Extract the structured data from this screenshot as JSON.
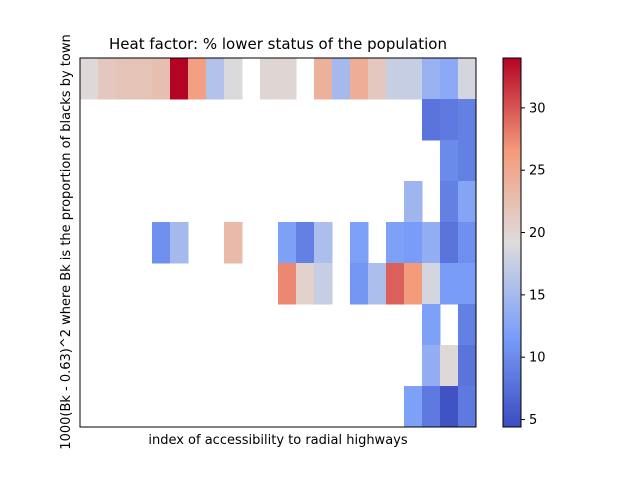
{
  "chart_data": {
    "type": "heatmap",
    "title": "Heat factor: % lower status of the population",
    "xlabel": "index of accessibility to radial highways",
    "ylabel": "1000(Bk - 0.63)^2 where Bk is the proportion of blacks by town",
    "colormap": "coolwarm",
    "colorbar": {
      "range": [
        4.4,
        34
      ],
      "ticks": [
        "5",
        "10",
        "15",
        "20",
        "25",
        "30"
      ],
      "tick_values": [
        5,
        10,
        15,
        20,
        25,
        30
      ]
    },
    "grid": false,
    "n_rows": 9,
    "n_cols": 22,
    "values": [
      [
        19.5,
        21.5,
        22,
        22,
        22.5,
        34,
        26,
        16,
        19,
        null,
        20,
        20,
        null,
        24,
        15,
        24.5,
        21.5,
        17.5,
        17.5,
        14,
        13,
        18.5
      ],
      [
        null,
        null,
        null,
        null,
        null,
        null,
        null,
        null,
        null,
        null,
        null,
        null,
        null,
        null,
        null,
        null,
        null,
        null,
        null,
        8,
        8.5,
        9
      ],
      [
        null,
        null,
        null,
        null,
        null,
        null,
        null,
        null,
        null,
        null,
        null,
        null,
        null,
        null,
        null,
        null,
        null,
        null,
        null,
        null,
        10,
        9
      ],
      [
        null,
        null,
        null,
        null,
        null,
        null,
        null,
        null,
        null,
        null,
        null,
        null,
        null,
        null,
        null,
        null,
        null,
        null,
        14.5,
        null,
        9,
        12.5
      ],
      [
        null,
        null,
        null,
        null,
        10.5,
        15,
        null,
        null,
        23,
        null,
        null,
        12,
        9,
        15.5,
        null,
        12,
        null,
        12,
        11.5,
        13.5,
        8,
        10.5
      ],
      [
        null,
        null,
        null,
        null,
        null,
        null,
        null,
        null,
        null,
        null,
        null,
        27.5,
        20.5,
        17.5,
        null,
        11,
        15.5,
        29.5,
        26.5,
        18.5,
        11.5,
        11.5
      ],
      [
        null,
        null,
        null,
        null,
        null,
        null,
        null,
        null,
        null,
        null,
        null,
        null,
        null,
        null,
        null,
        null,
        null,
        null,
        null,
        12,
        null,
        9
      ],
      [
        null,
        null,
        null,
        null,
        null,
        null,
        null,
        null,
        null,
        null,
        null,
        null,
        null,
        null,
        null,
        null,
        null,
        null,
        null,
        13.5,
        19.5,
        8
      ],
      [
        null,
        null,
        null,
        null,
        null,
        null,
        null,
        null,
        null,
        null,
        null,
        null,
        null,
        null,
        null,
        null,
        null,
        null,
        12,
        8.5,
        5,
        8.5
      ]
    ]
  }
}
